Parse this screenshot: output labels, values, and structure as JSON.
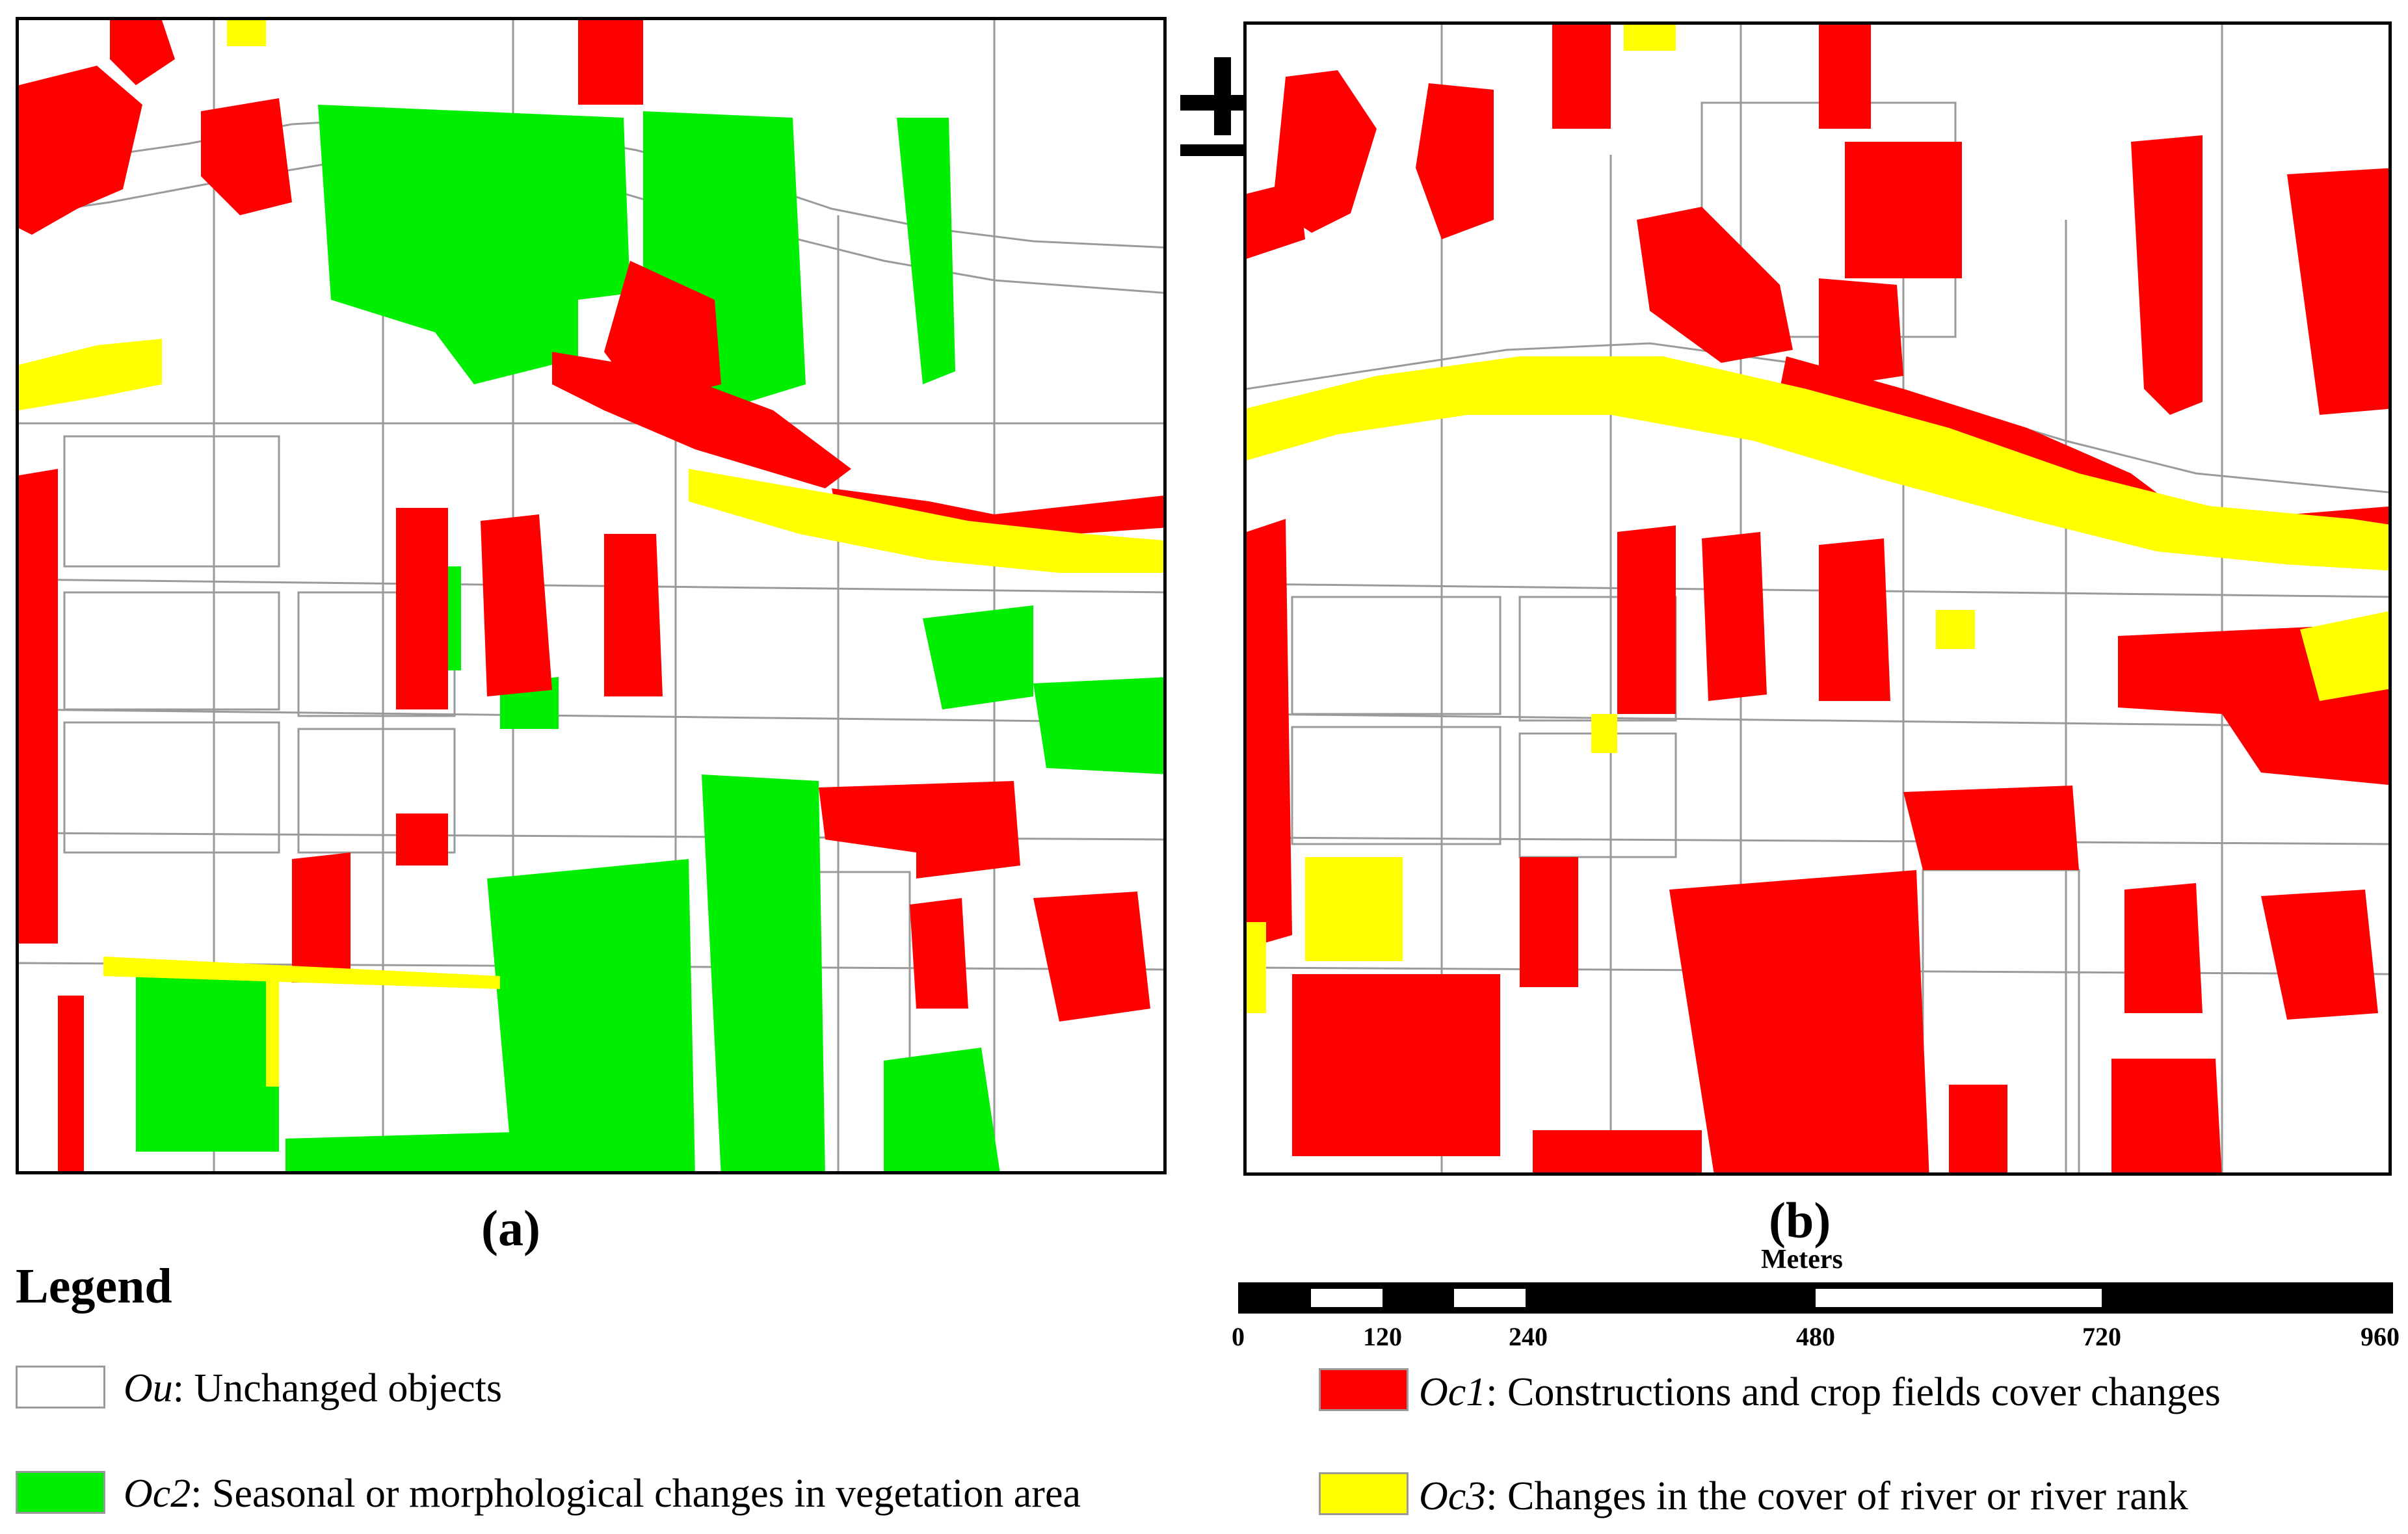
{
  "panels": [
    {
      "id": "a",
      "caption": "(a)"
    },
    {
      "id": "b",
      "caption": "(b)"
    }
  ],
  "legend": {
    "title": "Legend",
    "items": [
      {
        "code": "Ou",
        "text": ": Unchanged objects",
        "color": "#ffffff"
      },
      {
        "code": "Oc1",
        "text": ": Constructions and crop fields cover changes",
        "color": "#ff0000"
      },
      {
        "code": "Oc2",
        "text": ": Seasonal or morphological  changes in  vegetation area",
        "color": "#00ee00"
      },
      {
        "code": "Oc3",
        "text": ": Changes in the cover of river or  river rank",
        "color": "#ffff00"
      }
    ]
  },
  "scale_bar": {
    "unit": "Meters",
    "ticks": [
      "0",
      "120",
      "240",
      "480",
      "720",
      "960"
    ]
  },
  "colors": {
    "change_construction": "#ff0000",
    "change_vegetation": "#00ee00",
    "change_river": "#ffff00",
    "unchanged": "#ffffff",
    "boundary": "#9a9a9a",
    "frame": "#000000"
  },
  "north_arrow_icon": "north-arrow-icon"
}
